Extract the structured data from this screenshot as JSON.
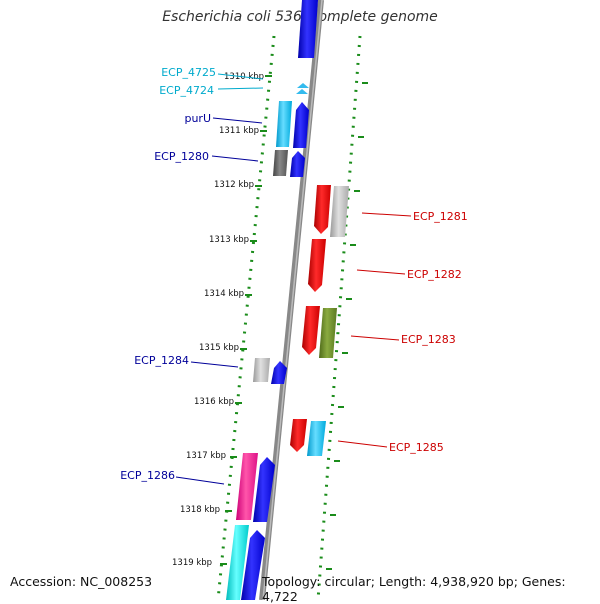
{
  "title": "Escherichia coli 536, complete genome",
  "footer": {
    "accession": "Accession: NC_008253",
    "summary": "Topology: circular; Length: 4,938,920 bp; Genes: 4,722"
  },
  "colors": {
    "backbone": "#808080",
    "ring_ticks": "#1a8c1a",
    "label_blue": "#000099",
    "label_cyan": "#00aacc",
    "label_red": "#cc0000"
  },
  "scale": {
    "unit": "kbp",
    "ticks": [
      "1310 kbp",
      "1311 kbp",
      "1312 kbp",
      "1313 kbp",
      "1314 kbp",
      "1315 kbp",
      "1316 kbp",
      "1317 kbp",
      "1318 kbp",
      "1319 kbp"
    ]
  },
  "gene_labels": [
    {
      "text": "ECP_4725",
      "side": "left",
      "color": "#00aacc"
    },
    {
      "text": "ECP_4724",
      "side": "left",
      "color": "#00aacc"
    },
    {
      "text": "purU",
      "side": "left",
      "color": "#000099"
    },
    {
      "text": "ECP_1280",
      "side": "left",
      "color": "#000099"
    },
    {
      "text": "ECP_1281",
      "side": "right",
      "color": "#cc0000"
    },
    {
      "text": "ECP_1282",
      "side": "right",
      "color": "#cc0000"
    },
    {
      "text": "ECP_1283",
      "side": "right",
      "color": "#cc0000"
    },
    {
      "text": "ECP_1284",
      "side": "left",
      "color": "#000099"
    },
    {
      "text": "ECP_1285",
      "side": "right",
      "color": "#cc0000"
    },
    {
      "text": "ECP_1286",
      "side": "left",
      "color": "#000099"
    }
  ]
}
